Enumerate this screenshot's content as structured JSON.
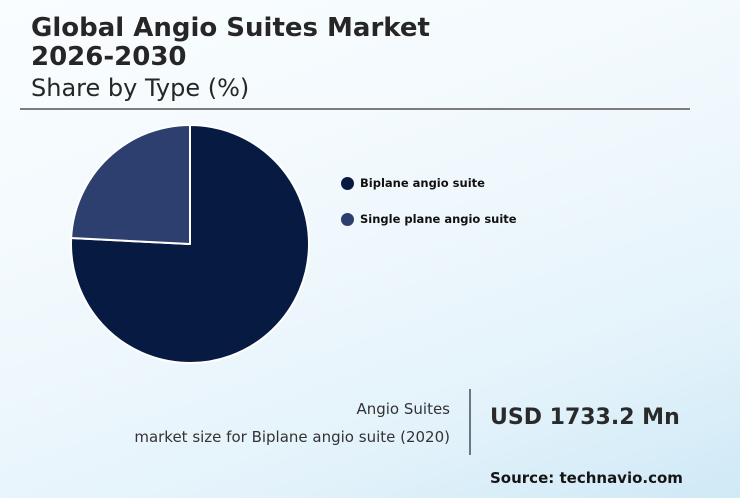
{
  "header": {
    "title_line1": "Global Angio Suites Market",
    "title_line2": "2026-2030",
    "subtitle": "Share by Type (%)"
  },
  "legend": {
    "items": [
      {
        "label": "Biplane angio suite",
        "color": "#071b42"
      },
      {
        "label": "Single plane angio suite",
        "color": "#2c3f6e"
      }
    ]
  },
  "kpi": {
    "label_line1": "Angio Suites",
    "label_line2": "market size for Biplane angio suite (2020)",
    "value": "USD 1733.2 Mn"
  },
  "footer": {
    "source": "Source: technavio.com"
  },
  "colors": {
    "biplane": "#071b42",
    "single_plane": "#2c3f6e",
    "rule": "#7c7c7c"
  },
  "chart_data": {
    "type": "pie",
    "title": "Global Angio Suites Market 2026-2030",
    "subtitle": "Share by Type (%)",
    "categories": [
      "Biplane angio suite",
      "Single plane angio suite"
    ],
    "values": [
      75.8,
      24.2
    ],
    "colors": [
      "#071b42",
      "#2c3f6e"
    ],
    "start_angle_deg": 90,
    "legend_position": "right",
    "data_labels": false
  }
}
